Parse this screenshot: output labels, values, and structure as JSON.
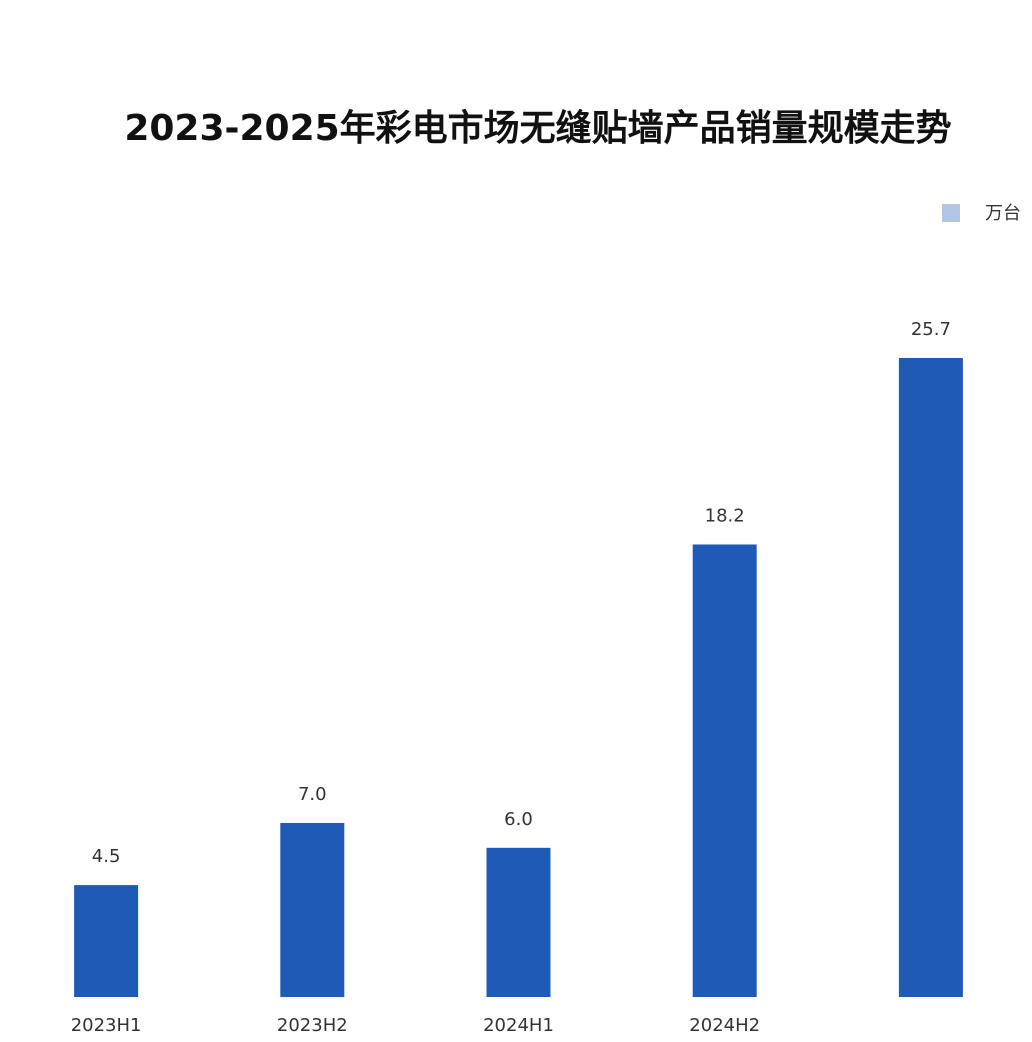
{
  "chart_data": {
    "type": "bar",
    "title": "2023-2025年彩电市场无缝贴墙产品销量规模走势",
    "categories": [
      "2023H1",
      "2023H2",
      "2024H1",
      "2024H2",
      null
    ],
    "series": [
      {
        "name": "万台",
        "color": "#1f5bb6",
        "values": [
          4.5,
          7.0,
          6.0,
          18.2,
          25.7
        ],
        "value_labels": [
          "4.5",
          "7.0",
          "6.0",
          "18.2",
          "25.7"
        ]
      }
    ],
    "legend": "top-right"
  }
}
